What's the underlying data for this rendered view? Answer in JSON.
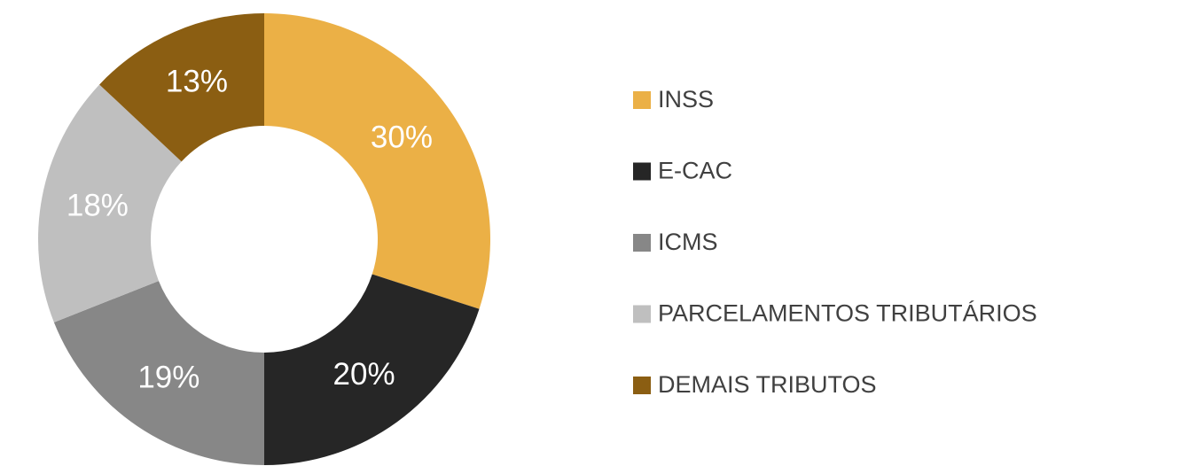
{
  "chart_data": {
    "type": "pie",
    "categories": [
      "INSS",
      "E-CAC",
      "ICMS",
      "PARCELAMENTOS TRIBUTÁRIOS",
      "DEMAIS TRIBUTOS"
    ],
    "values": [
      30,
      20,
      19,
      18,
      13
    ],
    "value_labels": [
      "30%",
      "20%",
      "19%",
      "18%",
      "13%"
    ],
    "colors": [
      "#ebb046",
      "#262626",
      "#878787",
      "#bfbfbf",
      "#8b5e12"
    ],
    "donut": true,
    "legend": "right"
  }
}
